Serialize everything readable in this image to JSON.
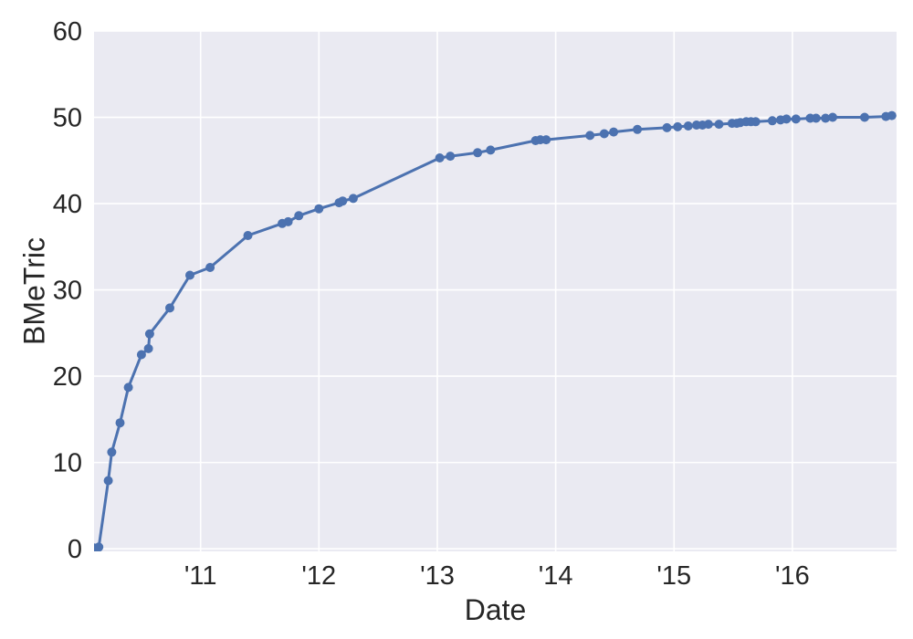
{
  "chart_data": {
    "type": "line",
    "title": "",
    "xlabel": "Date",
    "ylabel": "BMeTric",
    "legend_position": "none",
    "grid": true,
    "xlim": [
      2010.1,
      2016.88
    ],
    "ylim": [
      -0.3,
      60
    ],
    "xticks": {
      "values": [
        2011,
        2012,
        2013,
        2014,
        2015,
        2016
      ],
      "labels": [
        "'11",
        "'12",
        "'13",
        "'14",
        "'15",
        "'16"
      ]
    },
    "yticks": {
      "values": [
        0,
        10,
        20,
        30,
        40,
        50,
        60
      ],
      "labels": [
        "0",
        "10",
        "20",
        "30",
        "40",
        "50",
        "60"
      ]
    },
    "series": [
      {
        "name": "BMeTric",
        "marker": "circle",
        "x": [
          2010.1,
          2010.14,
          2010.22,
          2010.25,
          2010.32,
          2010.39,
          2010.5,
          2010.56,
          2010.57,
          2010.74,
          2010.91,
          2011.08,
          2011.4,
          2011.69,
          2011.74,
          2011.83,
          2012.0,
          2012.17,
          2012.2,
          2012.29,
          2013.02,
          2013.11,
          2013.34,
          2013.45,
          2013.83,
          2013.87,
          2013.92,
          2014.29,
          2014.41,
          2014.49,
          2014.69,
          2014.94,
          2015.03,
          2015.12,
          2015.19,
          2015.24,
          2015.29,
          2015.38,
          2015.49,
          2015.53,
          2015.56,
          2015.61,
          2015.65,
          2015.69,
          2015.83,
          2015.9,
          2015.95,
          2016.03,
          2016.15,
          2016.2,
          2016.28,
          2016.34,
          2016.61,
          2016.79,
          2016.84
        ],
        "y": [
          0.1,
          0.2,
          7.9,
          11.2,
          14.6,
          18.7,
          22.5,
          23.2,
          24.9,
          27.9,
          31.7,
          32.6,
          36.3,
          37.7,
          37.9,
          38.6,
          39.4,
          40.1,
          40.3,
          40.6,
          45.3,
          45.5,
          45.9,
          46.2,
          47.3,
          47.4,
          47.4,
          47.9,
          48.1,
          48.3,
          48.6,
          48.8,
          48.9,
          49.0,
          49.1,
          49.1,
          49.2,
          49.2,
          49.3,
          49.3,
          49.4,
          49.5,
          49.5,
          49.5,
          49.6,
          49.7,
          49.8,
          49.8,
          49.9,
          49.9,
          49.9,
          50.0,
          50.0,
          50.1,
          50.2
        ]
      }
    ],
    "style": {
      "line_color": "#4C72B0",
      "marker_color": "#4C72B0",
      "plot_bg": "#EAEAF2",
      "grid_color": "#FFFFFF",
      "text_color": "#262626",
      "figure_bg": "#FFFFFF",
      "tick_font_size": 29,
      "label_font_size": 32,
      "line_width": 3,
      "marker_radius": 5
    }
  }
}
